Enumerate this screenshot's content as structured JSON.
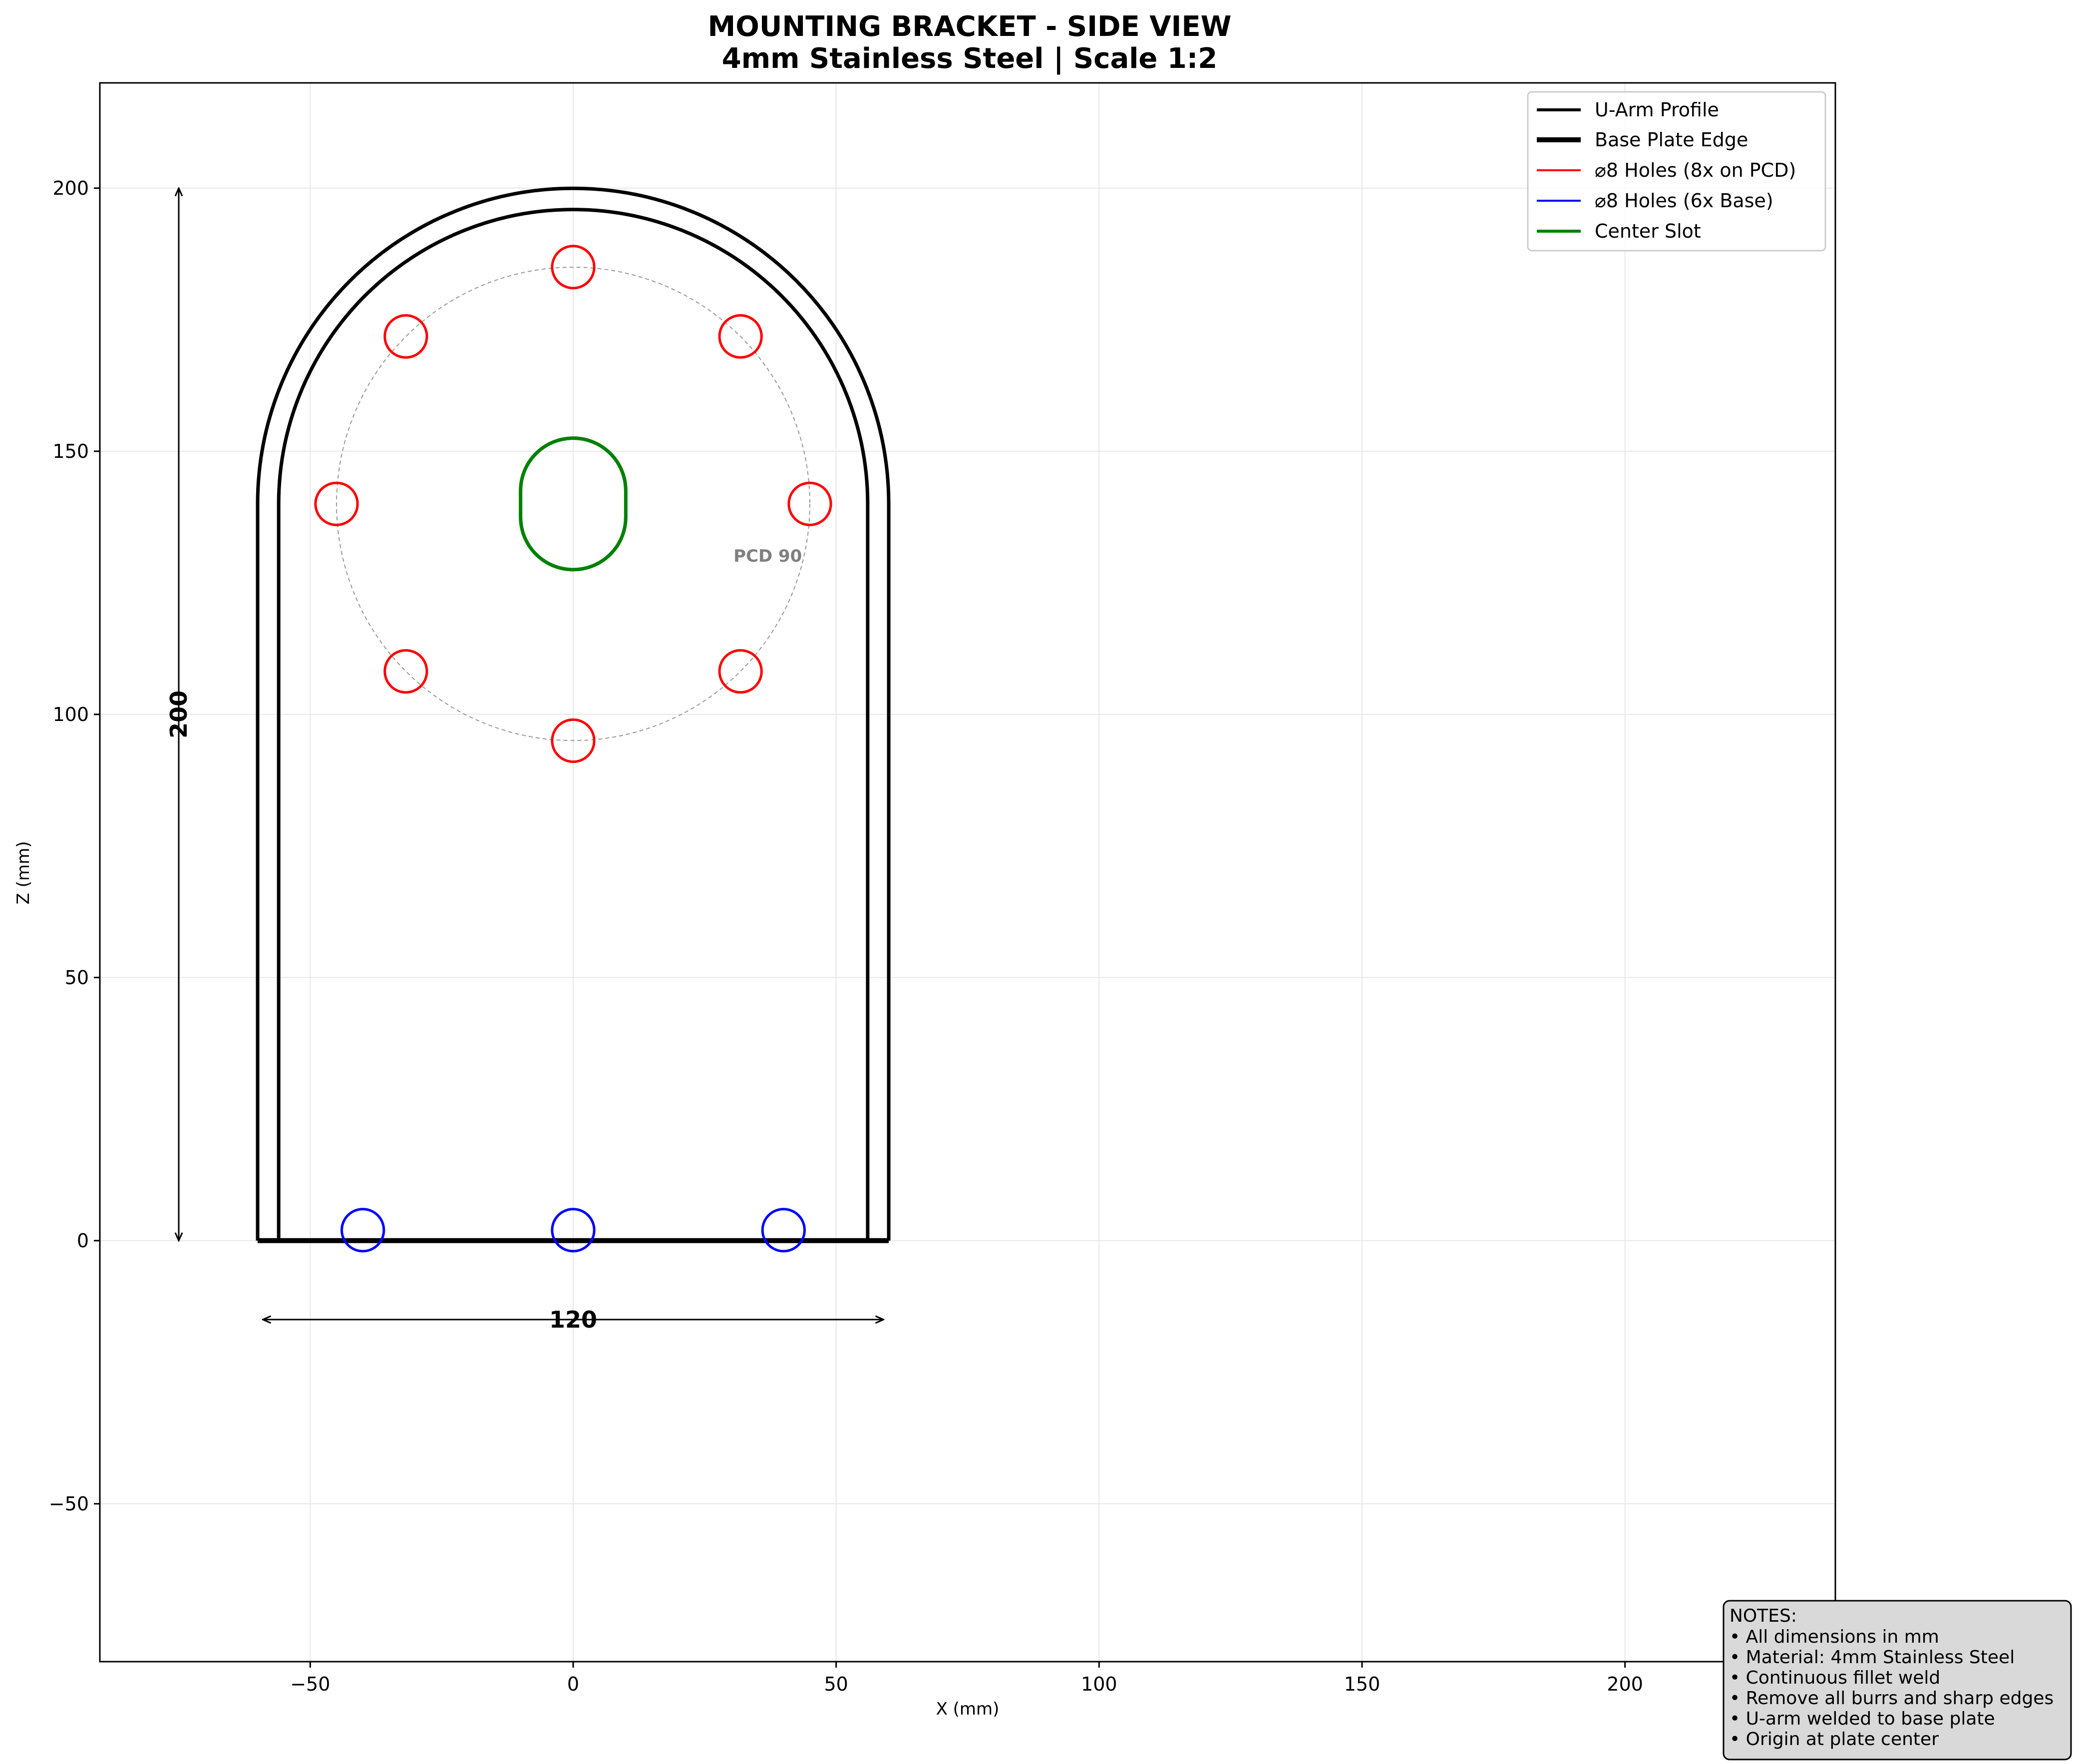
{
  "title": {
    "line1": "MOUNTING BRACKET - SIDE VIEW",
    "line2": "4mm Stainless Steel | Scale 1:2"
  },
  "axes": {
    "xlabel": "X (mm)",
    "ylabel": "Z (mm)",
    "xlim": [
      -90,
      240
    ],
    "ylim": [
      -80,
      220
    ],
    "xticks": [
      -50,
      0,
      50,
      100,
      150,
      200
    ],
    "yticks": [
      -50,
      0,
      50,
      100,
      150,
      200
    ],
    "xtick_labels": [
      "−50",
      "0",
      "50",
      "100",
      "150",
      "200"
    ],
    "ytick_labels": [
      "−50",
      "0",
      "50",
      "100",
      "150",
      "200"
    ],
    "grid": true
  },
  "geometry": {
    "outer_half_width": 60,
    "inner_half_width": 56,
    "arc_center_z": 140,
    "outer_radius": 60,
    "inner_radius": 56,
    "base_z": 0,
    "pcd_center": [
      0,
      140
    ],
    "pcd_radius": 45,
    "pcd_hole_radius": 4,
    "pcd_hole_count": 8,
    "base_holes_x": [
      -40,
      0,
      40
    ],
    "base_hole_z": 2,
    "base_hole_radius": 4,
    "slot_center": [
      0,
      140
    ],
    "slot_radius": 10,
    "slot_half_straight": 2.5
  },
  "dimensions": {
    "height_value": "200",
    "height_x": -75,
    "height_from": 0,
    "height_to": 200,
    "width_value": "120",
    "width_z": -15,
    "width_from": -59,
    "width_to": 59
  },
  "annotations": {
    "pcd_label": "PCD 90",
    "pcd_label_pos": [
      37,
      129
    ]
  },
  "legend": {
    "placement": "top-right",
    "items": [
      {
        "label": "U-Arm Profile",
        "color": "#000000"
      },
      {
        "label": "Base Plate Edge",
        "color": "#000000"
      },
      {
        "label": "⌀8 Holes (8x on PCD)",
        "color": "#ff0000"
      },
      {
        "label": "⌀8 Holes (6x Base)",
        "color": "#0000ff"
      },
      {
        "label": "Center Slot",
        "color": "#008000"
      }
    ]
  },
  "notes": {
    "heading": "NOTES:",
    "lines": [
      "• All dimensions in mm",
      "• Material: 4mm Stainless Steel",
      "• Continuous fillet weld",
      "• Remove all burrs and sharp edges",
      "• U-arm welded to base plate",
      "• Origin at plate center"
    ]
  },
  "colors": {
    "profile": "#000000",
    "pcd_holes": "#ff0000",
    "base_holes": "#0000ff",
    "slot": "#008000",
    "pcd_circle": "#999999",
    "grid": "#e8e8e8",
    "notes_bg": "#d9d9d9"
  }
}
